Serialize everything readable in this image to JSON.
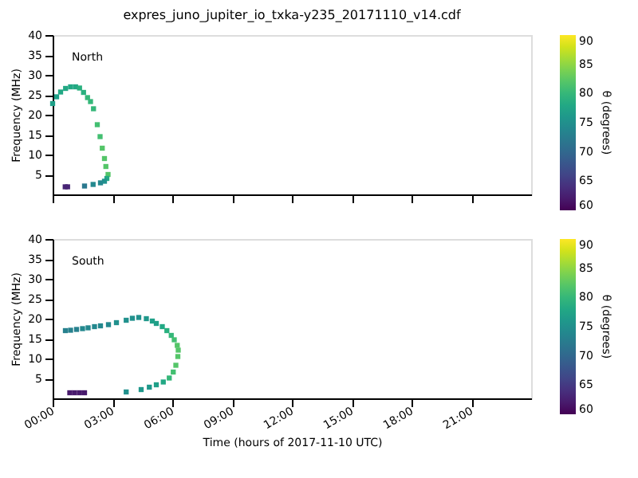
{
  "chart_data": [
    {
      "type": "scatter",
      "title": "expres_juno_jupiter_io_txka-y235_20171110_v14.cdf",
      "ylabel": "Frequency (MHz)",
      "clabel": "θ (degrees)",
      "annotations": [
        "North"
      ],
      "marker": "square",
      "grid": false,
      "tick_labels": "y",
      "x": [
        0,
        0.2,
        0.4,
        0.65,
        0.9,
        1.15,
        1.35,
        1.55,
        1.75,
        1.9,
        2.05,
        2.24,
        2.38,
        2.49,
        2.6,
        2.67,
        2.78,
        2.72,
        2.6,
        2.4,
        2.03,
        1.6,
        0.63,
        0.75
      ],
      "values": [
        22.8,
        24.5,
        25.7,
        26.6,
        27,
        27,
        26.7,
        25.6,
        24.3,
        23.3,
        21.5,
        17.5,
        14.5,
        11.6,
        9,
        7,
        5,
        4,
        3.3,
        2.9,
        2.5,
        2.1,
        1.9,
        1.9
      ],
      "cvalues": [
        77,
        77,
        78,
        78,
        78,
        78,
        79,
        79,
        80,
        80,
        80,
        81,
        81,
        82,
        82,
        82,
        82,
        78,
        75,
        74,
        74,
        72,
        63,
        63
      ],
      "xlim": [
        0,
        24
      ],
      "ylim": [
        0,
        40
      ],
      "xticks": [
        {
          "value": 0,
          "label": null
        },
        {
          "value": 3,
          "label": null
        },
        {
          "value": 6,
          "label": null
        },
        {
          "value": 9,
          "label": null
        },
        {
          "value": 12,
          "label": null
        },
        {
          "value": 15,
          "label": null
        },
        {
          "value": 18,
          "label": null
        },
        {
          "value": 21,
          "label": null
        }
      ],
      "yticks": [
        5,
        10,
        15,
        20,
        25,
        30,
        35,
        40
      ],
      "clim": [
        60,
        90
      ],
      "cticks": [
        60,
        65,
        70,
        75,
        80,
        85,
        90
      ]
    },
    {
      "type": "scatter",
      "ylabel": "Frequency (MHz)",
      "xlabel": "Time (hours of 2017-11-10 UTC)",
      "clabel": "θ (degrees)",
      "annotations": [
        "South"
      ],
      "marker": "square",
      "grid": false,
      "x": [
        0.64,
        0.9,
        1.2,
        1.5,
        1.78,
        2.1,
        2.4,
        2.8,
        3.2,
        3.69,
        4.0,
        4.32,
        4.7,
        5.0,
        5.2,
        5.5,
        5.73,
        5.95,
        6.1,
        6.25,
        6.3,
        6.28,
        6.18,
        6.05,
        5.85,
        5.55,
        5.2,
        4.85,
        4.44,
        3.69,
        0.86,
        1.1,
        1.35,
        1.6
      ],
      "values": [
        17,
        17.1,
        17.3,
        17.5,
        17.7,
        18,
        18.2,
        18.5,
        19,
        19.6,
        20.1,
        20.3,
        20,
        19.4,
        18.8,
        18,
        17,
        15.8,
        14.7,
        13.3,
        12.1,
        10.5,
        8.3,
        6.6,
        5.1,
        4.1,
        3.4,
        2.8,
        2.2,
        1.6,
        1.4,
        1.4,
        1.4,
        1.4
      ],
      "cvalues": [
        73,
        73,
        73,
        74,
        74,
        74,
        74,
        74,
        75,
        75,
        75,
        75,
        76,
        77,
        77,
        78,
        79,
        80,
        81,
        82,
        82,
        82,
        82,
        81,
        80,
        78,
        77,
        76,
        76,
        75,
        62,
        62,
        62,
        62
      ],
      "xlim": [
        0,
        24
      ],
      "ylim": [
        0,
        40
      ],
      "xticks": [
        {
          "value": 0,
          "label": "00:00"
        },
        {
          "value": 3,
          "label": "03:00"
        },
        {
          "value": 6,
          "label": "06:00"
        },
        {
          "value": 9,
          "label": "09:00"
        },
        {
          "value": 12,
          "label": "12:00"
        },
        {
          "value": 15,
          "label": "15:00"
        },
        {
          "value": 18,
          "label": "18:00"
        },
        {
          "value": 21,
          "label": "21:00"
        }
      ],
      "yticks": [
        5,
        10,
        15,
        20,
        25,
        30,
        35,
        40
      ],
      "clim": [
        60,
        90
      ],
      "cticks": [
        60,
        65,
        70,
        75,
        80,
        85,
        90
      ]
    }
  ]
}
